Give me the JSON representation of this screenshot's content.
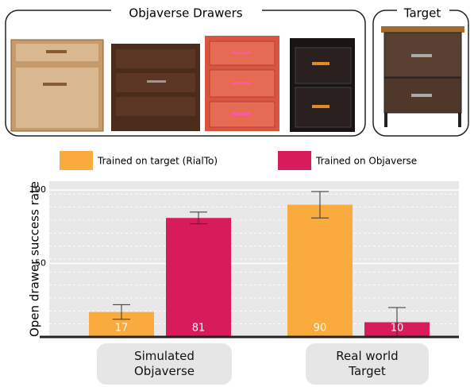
{
  "panels": {
    "left_title": "Objaverse Drawers",
    "right_title": "Target"
  },
  "chart_data": {
    "type": "bar",
    "categories": [
      "Simulated\nObjaverse",
      "Real world\nTarget"
    ],
    "series": [
      {
        "name": "Trained on target (RialTo)",
        "color": "#f9ac3d",
        "values": [
          17,
          90
        ],
        "errors": [
          5,
          9
        ]
      },
      {
        "name": "Trained on Objaverse",
        "color": "#d81b5a",
        "values": [
          81,
          10
        ],
        "errors": [
          4,
          10
        ]
      }
    ],
    "ylabel": "Open drawer success rate",
    "ylim": [
      0,
      106
    ],
    "yticks": [
      50,
      100
    ],
    "grid": true,
    "legend": "top"
  }
}
